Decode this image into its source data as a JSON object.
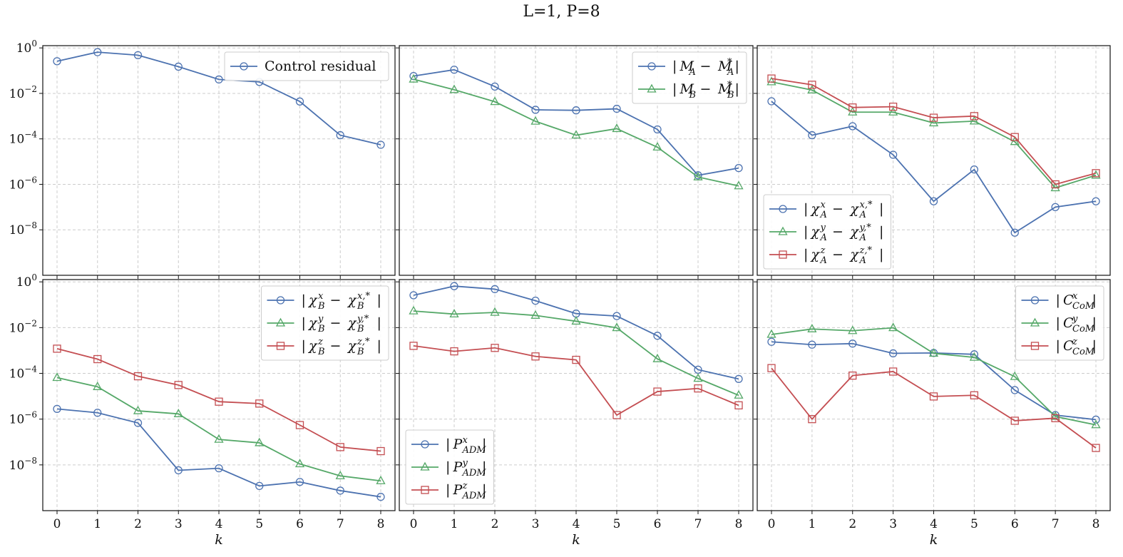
{
  "title": "L=1, P=8",
  "colors": {
    "blue": "#4c72b0",
    "green": "#55a868",
    "red": "#c44e52"
  },
  "chart_data": [
    {
      "type": "line",
      "yscale": "log",
      "grid": true,
      "legend": "top-right",
      "xlabel": "",
      "ylabel": "",
      "x": [
        0,
        1,
        2,
        3,
        4,
        5,
        6,
        7,
        8
      ],
      "series": [
        {
          "name": "Control residual",
          "marker": "circle",
          "color": "#4c72b0",
          "values": [
            0.26,
            0.65,
            0.48,
            0.15,
            0.041,
            0.032,
            0.0044,
            0.000145,
            5.5e-05
          ]
        }
      ]
    },
    {
      "type": "line",
      "yscale": "log",
      "grid": true,
      "legend": "top-right",
      "xlabel": "",
      "ylabel": "",
      "x": [
        0,
        1,
        2,
        3,
        4,
        5,
        6,
        7,
        8
      ],
      "series": [
        {
          "name": "|M_A - M_A*|",
          "marker": "circle",
          "color": "#4c72b0",
          "values": [
            0.058,
            0.11,
            0.02,
            0.0019,
            0.0018,
            0.0021,
            0.00026,
            2.5e-06,
            5.2e-06
          ]
        },
        {
          "name": "|M_B - M_B*|",
          "marker": "triangle",
          "color": "#55a868",
          "values": [
            0.042,
            0.0145,
            0.0043,
            0.00059,
            0.000145,
            0.00028,
            4.3e-05,
            2.1e-06,
            8.5e-07
          ]
        }
      ]
    },
    {
      "type": "line",
      "yscale": "log",
      "grid": true,
      "legend": "lower-left",
      "xlabel": "",
      "ylabel": "",
      "x": [
        0,
        1,
        2,
        3,
        4,
        5,
        6,
        7,
        8
      ],
      "series": [
        {
          "name": "|χ_A^x - χ_A^{x,*}|",
          "marker": "circle",
          "color": "#4c72b0",
          "values": [
            0.0045,
            0.000145,
            0.00036,
            2e-05,
            1.8e-07,
            4.5e-06,
            7.5e-09,
            1e-07,
            1.8e-07
          ]
        },
        {
          "name": "|χ_A^y - χ_A^{y,*}|",
          "marker": "triangle",
          "color": "#55a868",
          "values": [
            0.032,
            0.014,
            0.0015,
            0.0015,
            0.0005,
            0.0006,
            7.5e-05,
            7e-07,
            2.5e-06
          ]
        },
        {
          "name": "|χ_A^z - χ_A^{z,*}|",
          "marker": "square",
          "color": "#c44e52",
          "values": [
            0.045,
            0.024,
            0.0024,
            0.0026,
            0.00085,
            0.001,
            0.00012,
            1e-06,
            3.1e-06
          ]
        }
      ]
    },
    {
      "type": "line",
      "yscale": "log",
      "grid": true,
      "legend": "top-right",
      "xlabel": "k",
      "ylabel": "",
      "x": [
        0,
        1,
        2,
        3,
        4,
        5,
        6,
        7,
        8
      ],
      "series": [
        {
          "name": "|χ_B^x - χ_B^{x,*}|",
          "marker": "circle",
          "color": "#4c72b0",
          "values": [
            2.8e-06,
            1.9e-06,
            6.8e-07,
            5.8e-09,
            7.1e-09,
            1.2e-09,
            1.8e-09,
            7.5e-10,
            4e-10
          ]
        },
        {
          "name": "|χ_B^y - χ_B^{y,*}|",
          "marker": "triangle",
          "color": "#55a868",
          "values": [
            6.5e-05,
            2.6e-05,
            2.3e-06,
            1.7e-06,
            1.3e-07,
            9.2e-08,
            1.1e-08,
            3.3e-09,
            2e-09
          ]
        },
        {
          "name": "|χ_B^z - χ_B^{z,*}|",
          "marker": "square",
          "color": "#c44e52",
          "values": [
            0.0012,
            0.00042,
            7.5e-05,
            3.1e-05,
            5.8e-06,
            4.8e-06,
            5.5e-07,
            6e-08,
            4e-08
          ]
        }
      ]
    },
    {
      "type": "line",
      "yscale": "log",
      "grid": true,
      "legend": "lower-left",
      "xlabel": "k",
      "ylabel": "",
      "x": [
        0,
        1,
        2,
        3,
        4,
        5,
        6,
        7,
        8
      ],
      "series": [
        {
          "name": "|P_ADM^x|",
          "marker": "circle",
          "color": "#4c72b0",
          "values": [
            0.26,
            0.65,
            0.48,
            0.15,
            0.041,
            0.032,
            0.0044,
            0.000145,
            5.7e-05
          ]
        },
        {
          "name": "|P_ADM^y|",
          "marker": "triangle",
          "color": "#55a868",
          "values": [
            0.053,
            0.039,
            0.046,
            0.034,
            0.019,
            0.0098,
            0.00043,
            6e-05,
            1.1e-05
          ]
        },
        {
          "name": "|P_ADM^z|",
          "marker": "square",
          "color": "#c44e52",
          "values": [
            0.0016,
            0.00092,
            0.0013,
            0.00055,
            0.00039,
            1.5e-06,
            1.6e-05,
            2.2e-05,
            4e-06
          ]
        }
      ]
    },
    {
      "type": "line",
      "yscale": "log",
      "grid": true,
      "legend": "top-right",
      "xlabel": "k",
      "ylabel": "",
      "x": [
        0,
        1,
        2,
        3,
        4,
        5,
        6,
        7,
        8
      ],
      "series": [
        {
          "name": "|C_CoM^x|",
          "marker": "circle",
          "color": "#4c72b0",
          "values": [
            0.0024,
            0.0018,
            0.002,
            0.00075,
            0.00078,
            0.00068,
            1.85e-05,
            1.5e-06,
            9.5e-07
          ]
        },
        {
          "name": "|C_CoM^y|",
          "marker": "triangle",
          "color": "#55a868",
          "values": [
            0.005,
            0.0087,
            0.0073,
            0.0098,
            0.00075,
            0.0005,
            7.2e-05,
            1.3e-06,
            5.6e-07
          ]
        },
        {
          "name": "|C_CoM^z|",
          "marker": "square",
          "color": "#c44e52",
          "values": [
            0.00017,
            1e-06,
            8e-05,
            0.00012,
            9.8e-06,
            1.1e-05,
            8.5e-07,
            1.1e-06,
            5.5e-08
          ]
        }
      ]
    }
  ]
}
